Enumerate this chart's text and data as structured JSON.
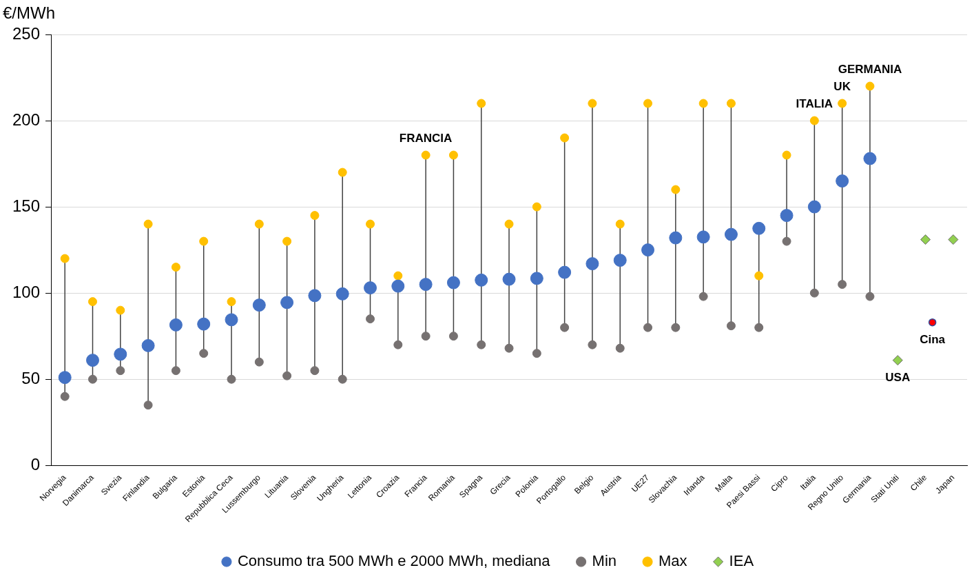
{
  "chart_data": {
    "type": "scatter",
    "ylabel": "€/MWh",
    "categories": [
      "Norvegia",
      "Danimarca",
      "Svezia",
      "Finlandia",
      "Bulgaria",
      "Estonia",
      "Repubblica Ceca",
      "Lussemburgo",
      "Lituania",
      "Slovenia",
      "Ungheria",
      "Lettonia",
      "Croazia",
      "Francia",
      "Romania",
      "Spagna",
      "Grecia",
      "Polonia",
      "Portogallo",
      "Belgio",
      "Austria",
      "UE27",
      "Slovachia",
      "Irlanda",
      "Malta",
      "Paesi Bassi",
      "Cipro",
      "Italia",
      "Regno Unito",
      "Germania",
      "Stati Uniti",
      "Chile",
      "Japan"
    ],
    "series": [
      {
        "name": "Consumo tra 500 MWh e 2000 MWh, mediana",
        "color": "#4472c4",
        "marker": "circle",
        "values": [
          51,
          61,
          64.5,
          69.5,
          81.5,
          82,
          84.5,
          93,
          94.5,
          98.5,
          99.5,
          103,
          104,
          105,
          106,
          107.5,
          108,
          108.5,
          112,
          117,
          119,
          125,
          132,
          132.5,
          134,
          137.5,
          145,
          150,
          165,
          178,
          null,
          null,
          null
        ]
      },
      {
        "name": "Min",
        "color": "#767171",
        "marker": "circle",
        "values": [
          40,
          50,
          55,
          35,
          55,
          65,
          50,
          60,
          52,
          55,
          50,
          85,
          70,
          75,
          75,
          70,
          68,
          65,
          80,
          70,
          68,
          80,
          80,
          98,
          81,
          80,
          130,
          100,
          105,
          98,
          null,
          null,
          null
        ]
      },
      {
        "name": "Max",
        "color": "#ffc000",
        "marker": "circle",
        "values": [
          120,
          95,
          90,
          140,
          115,
          130,
          95,
          140,
          130,
          145,
          170,
          140,
          110,
          180,
          180,
          210,
          140,
          150,
          190,
          210,
          140,
          210,
          160,
          210,
          210,
          110,
          180,
          200,
          210,
          220,
          null,
          null,
          null
        ]
      },
      {
        "name": "IEA",
        "color": "#92d050",
        "marker": "diamond",
        "values": [
          null,
          null,
          null,
          null,
          null,
          null,
          null,
          null,
          null,
          null,
          null,
          null,
          null,
          null,
          null,
          null,
          null,
          null,
          null,
          null,
          null,
          null,
          null,
          null,
          null,
          null,
          null,
          null,
          null,
          null,
          61,
          131,
          131
        ]
      },
      {
        "color": "#ff0000",
        "marker": "circle",
        "x": [
          "Chile"
        ],
        "values": [
          83
        ]
      }
    ],
    "ylim": [
      0,
      250
    ],
    "yticks": [
      0,
      50,
      100,
      150,
      200,
      250
    ],
    "grid": "y",
    "legend": "bottom",
    "annotations": [
      {
        "text": "FRANCIA",
        "x": "Francia",
        "y": 180
      },
      {
        "text": "ITALIA",
        "x": "Italia",
        "y": 200
      },
      {
        "text": "UK",
        "x": "Regno Unito",
        "y": 210
      },
      {
        "text": "GERMANIA",
        "x": "Germania",
        "y": 220
      },
      {
        "text": "USA",
        "x": "Stati Uniti",
        "y": 61
      },
      {
        "text": "Cina",
        "x": "Chile",
        "y": 83
      }
    ]
  }
}
